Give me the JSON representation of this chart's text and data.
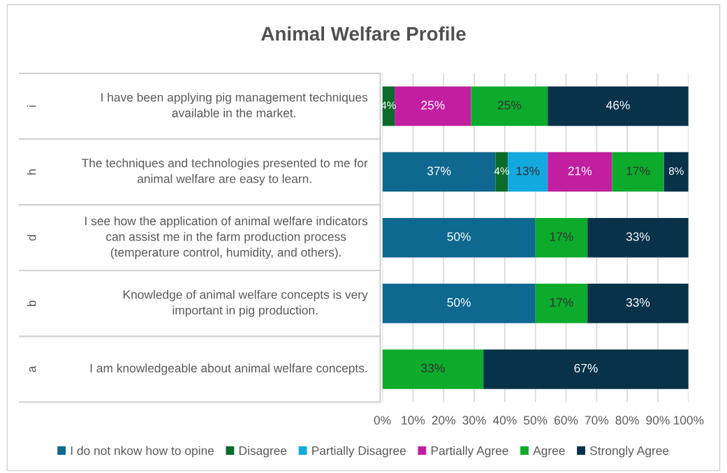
{
  "chart_data": {
    "type": "bar",
    "orientation": "horizontal",
    "stacked": true,
    "title": "Animal Welfare Profile",
    "categories": [
      "I have been applying pig management techniques\navailable in the market.",
      "The techniques and technologies presented to me for\nanimal welfare are easy to learn.",
      "I see how the application of animal welfare indicators\ncan assist me in the farm production process\n(temperature control, humidity, and others).",
      "Knowledge of animal welfare concepts is very\nimportant in pig production.",
      "I am knowledgeable about animal welfare concepts."
    ],
    "annotations": [
      "i",
      "h",
      "d",
      "b",
      "a"
    ],
    "series": [
      {
        "name": "I do not nkow how to opine",
        "color": "#0f6890",
        "values": [
          null,
          37,
          50,
          50,
          null
        ],
        "value_labels": [
          null,
          "37%",
          "50%",
          "50%",
          null
        ]
      },
      {
        "name": "Disagree",
        "color": "#0a6b2a",
        "values": [
          4,
          4,
          null,
          null,
          null
        ],
        "value_labels": [
          "4%",
          "4%",
          null,
          null,
          null
        ]
      },
      {
        "name": "Partially Disagree",
        "color": "#12a9de",
        "values": [
          null,
          13,
          null,
          null,
          null
        ],
        "value_labels": [
          null,
          "13%",
          null,
          null,
          null
        ]
      },
      {
        "name": "Partially Agree",
        "color": "#c21fa0",
        "values": [
          25,
          21,
          null,
          null,
          null
        ],
        "value_labels": [
          "25%",
          "21%",
          null,
          null,
          null
        ]
      },
      {
        "name": "Agree",
        "color": "#0cab2c",
        "values": [
          25,
          17,
          17,
          17,
          33
        ],
        "value_labels": [
          "25%",
          "17%",
          "17%",
          "17%",
          "33%"
        ]
      },
      {
        "name": "Strongly Agree",
        "color": "#08324a",
        "values": [
          46,
          8,
          33,
          33,
          67
        ],
        "value_labels": [
          "46%",
          "8%",
          "33%",
          "33%",
          "67%"
        ]
      }
    ],
    "xlim": [
      0,
      100
    ],
    "xticks": [
      {
        "value": 0,
        "label": "0%"
      },
      {
        "value": 10,
        "label": "10%"
      },
      {
        "value": 20,
        "label": "20%"
      },
      {
        "value": 30,
        "label": "30%"
      },
      {
        "value": 40,
        "label": "40%"
      },
      {
        "value": 50,
        "label": "50%"
      },
      {
        "value": 60,
        "label": "60%"
      },
      {
        "value": 70,
        "label": "70%"
      },
      {
        "value": 80,
        "label": "80%"
      },
      {
        "value": 90,
        "label": "90%"
      },
      {
        "value": 100,
        "label": "100%"
      }
    ],
    "grid": "x",
    "legend": "bottom"
  }
}
